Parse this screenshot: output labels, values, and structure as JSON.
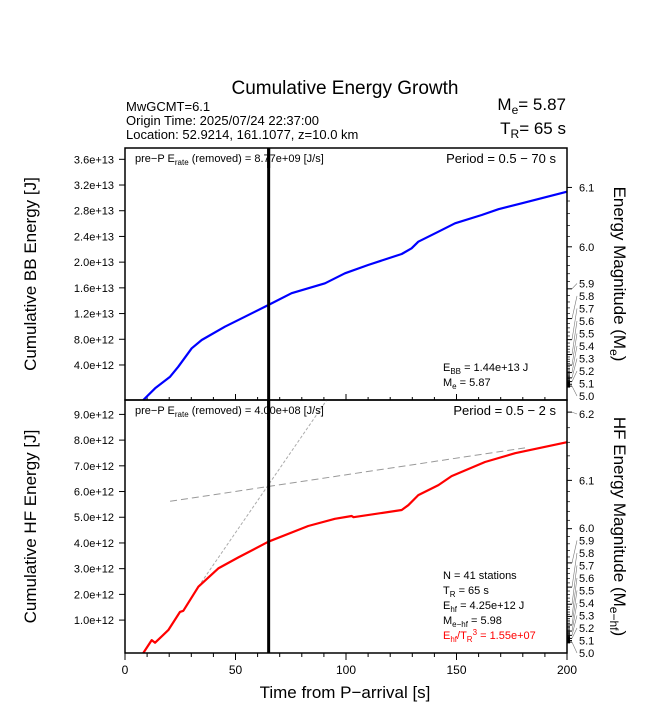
{
  "header": {
    "title": "Cumulative Energy Growth",
    "mw": "MwGCMT=6.1",
    "origin": "Origin Time: 2025/07/24 22:37:00",
    "location": "Location: 52.9214, 161.1077, z=10.0 km",
    "me_label": "M",
    "me_sub": "e",
    "me_value": "= 5.87",
    "tr_label": "T",
    "tr_sub": "R",
    "tr_value": "= 65 s"
  },
  "chart_data": [
    {
      "type": "line",
      "panel": "broadband",
      "ylabel": "Cumulative BB Energy [J]",
      "ylabel_right": "Energy Magnitude (M",
      "ylabel_right_sub": "e",
      "ylabel_right_end": ")",
      "xlim": [
        0,
        200
      ],
      "ylim": [
        -1450000000000.0,
        37760000000000.0
      ],
      "yticks": [
        4000000000000.0,
        8000000000000.0,
        12000000000000.0,
        16000000000000.0,
        20000000000000.0,
        24000000000000.0,
        28000000000000.0,
        32000000000000.0,
        36000000000000.0
      ],
      "ytick_labels": [
        "4.0e+12",
        "8.0e+12",
        "1.2e+13",
        "1.6e+13",
        "2.0e+13",
        "2.4e+13",
        "2.8e+13",
        "3.2e+13",
        "3.6e+13"
      ],
      "right_ticks": [
        6.1,
        6.0,
        5.9,
        5.8,
        5.7,
        5.6,
        5.5,
        5.4,
        5.3,
        5.2,
        5.1,
        5.0
      ],
      "right_tick_labels": [
        "6.1",
        "6.0",
        "5.9",
        "5.8",
        "5.7",
        "5.6",
        "5.5",
        "5.4",
        "5.3",
        "5.2",
        "5.1",
        "5.0"
      ],
      "color": "#0000ff",
      "x": [
        8.3,
        13.6,
        20.4,
        24.1,
        30.2,
        34.7,
        45.2,
        54.3,
        64.9,
        75.4,
        90.5,
        99.5,
        110,
        125.2,
        129.7,
        132.7,
        141.8,
        149.3,
        161.4,
        169,
        179.5,
        200
      ],
      "y": [
        -1450000000000.0,
        370000000000.0,
        2180000000000.0,
        3730000000000.0,
        6600000000000.0,
        7890000000000.0,
        9960000000000.0,
        11510000000000.0,
        13330000000000.0,
        15160000000000.0,
        16710000000000.0,
        18270000000000.0,
        19560000000000.0,
        21270000000000.0,
        22160000000000.0,
        23180000000000.0,
        24740000000000.0,
        26050000000000.0,
        27340000000000.0,
        28230000000000.0,
        29160000000000.0,
        30960000000000.0
      ],
      "rate_text_pre": "pre−P E",
      "rate_text_sub": "rate",
      "rate_text_post": " (removed) = 8.77e+09 [J/s]",
      "period": "Period = 0.5 − 70 s",
      "stats": [
        {
          "pre": "E",
          "sub": "BB",
          "post": " = 1.44e+13 J"
        },
        {
          "pre": "M",
          "sub": "e",
          "post": " = 5.87"
        }
      ]
    },
    {
      "type": "line",
      "panel": "high-frequency",
      "ylabel": "Cumulative HF Energy [J]",
      "ylabel_right": "HF Energy Magnitude (M",
      "ylabel_right_sub": "e−hf",
      "ylabel_right_end": ")",
      "xlabel": "Time from P−arrival [s]",
      "xlim": [
        0,
        200
      ],
      "xticks": [
        0,
        50,
        100,
        150,
        200
      ],
      "xtick_labels": [
        "0",
        "50",
        "100",
        "150",
        "200"
      ],
      "ylim": [
        -280000000000.0,
        9560000000000.0
      ],
      "yticks": [
        1000000000000.0,
        2000000000000.0,
        3000000000000.0,
        4000000000000.0,
        5000000000000.0,
        6000000000000.0,
        7000000000000.0,
        8000000000000.0,
        9000000000000.0
      ],
      "ytick_labels": [
        "1.0e+12",
        "2.0e+12",
        "3.0e+12",
        "4.0e+12",
        "5.0e+12",
        "6.0e+12",
        "7.0e+12",
        "8.0e+12",
        "9.0e+12"
      ],
      "right_ticks": [
        6.2,
        6.1,
        6.0,
        5.9,
        5.8,
        5.7,
        5.6,
        5.5,
        5.4,
        5.3,
        5.2,
        5.1,
        5.0
      ],
      "right_tick_labels": [
        "6.2",
        "6.1",
        "6.0",
        "5.9",
        "5.8",
        "5.7",
        "5.6",
        "5.5",
        "5.4",
        "5.3",
        "5.2",
        "5.1",
        "5.0"
      ],
      "color": "#ff0000",
      "x": [
        8.3,
        12.1,
        13.6,
        19.6,
        24.9,
        26.4,
        33.2,
        42.2,
        51.3,
        64.9,
        82.9,
        95,
        102.6,
        103.4,
        125.2,
        128.2,
        132.7,
        141.8,
        147.8,
        162.9,
        176.5,
        200
      ],
      "y": [
        -280000000000.0,
        220000000000.0,
        120000000000.0,
        610000000000.0,
        1320000000000.0,
        1360000000000.0,
        2300000000000.0,
        3010000000000.0,
        3440000000000.0,
        4050000000000.0,
        4660000000000.0,
        4940000000000.0,
        5050000000000.0,
        5000000000000.0,
        5280000000000.0,
        5470000000000.0,
        5860000000000.0,
        6250000000000.0,
        6600000000000.0,
        7150000000000.0,
        7490000000000.0,
        7920000000000.0
      ],
      "reference_lines": [
        {
          "x": [
            33.2,
            91.3
          ],
          "y": [
            2300000000000.0,
            9560000000000.0
          ],
          "style": "dotted",
          "color": "#aaaaaa"
        },
        {
          "x": [
            20.4,
            181
          ],
          "y": [
            5620000000000.0,
            7700000000000.0
          ],
          "style": "dashed",
          "color": "#999999"
        }
      ],
      "rate_text_pre": "pre−P E",
      "rate_text_sub": "rate",
      "rate_text_post": " (removed) = 4.00e+08 [J/s]",
      "period": "Period = 0.5 − 2 s",
      "stats": [
        {
          "pre": "N = 41 stations",
          "sub": "",
          "post": ""
        },
        {
          "pre": "T",
          "sub": "R",
          "post": " = 65  s"
        },
        {
          "pre": "E",
          "sub": "hf",
          "post": " = 4.25e+12 J"
        },
        {
          "pre": "M",
          "sub": "e−hf",
          "post": " = 5.98"
        },
        {
          "pre": "E",
          "sub": "hf",
          "post": "/T",
          "sub2": "R",
          "sup": "3",
          "post2": " =  1.55e+07",
          "color": "#ff0000"
        }
      ]
    }
  ],
  "rupture_time_marker": {
    "x": 65,
    "color": "#000000"
  }
}
